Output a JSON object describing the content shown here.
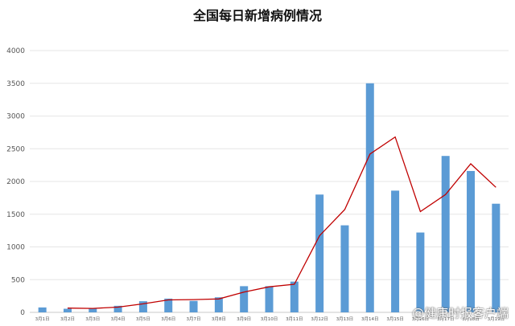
{
  "chart_data": {
    "type": "bar",
    "title": "全国每日新增病例情况",
    "categories": [
      "3月1日",
      "3月2日",
      "3月3日",
      "3月4日",
      "3月5日",
      "3月6日",
      "3月7日",
      "3月8日",
      "3月9日",
      "3月10日",
      "3月11日",
      "3月12日",
      "3月13日",
      "3月14日",
      "3月15日",
      "3月16日",
      "3月17日",
      "3月18日",
      "3月19日"
    ],
    "series": [
      {
        "type": "bar",
        "color": "#5b9bd5",
        "values": [
          75,
          55,
          65,
          100,
          170,
          210,
          175,
          230,
          400,
          400,
          470,
          1800,
          1330,
          3500,
          1860,
          1220,
          2390,
          2160,
          1660
        ]
      },
      {
        "type": "line",
        "color": "#c00000",
        "values": [
          null,
          65,
          60,
          80,
          130,
          190,
          195,
          205,
          310,
          390,
          430,
          1170,
          1570,
          2420,
          2680,
          1540,
          1800,
          2270,
          1910
        ]
      }
    ],
    "ylim": [
      0,
      4000
    ],
    "yticks": [
      0,
      500,
      1000,
      1500,
      2000,
      2500,
      3000,
      3500,
      4000
    ],
    "grid": true
  },
  "watermark": "@健康时报客户端"
}
